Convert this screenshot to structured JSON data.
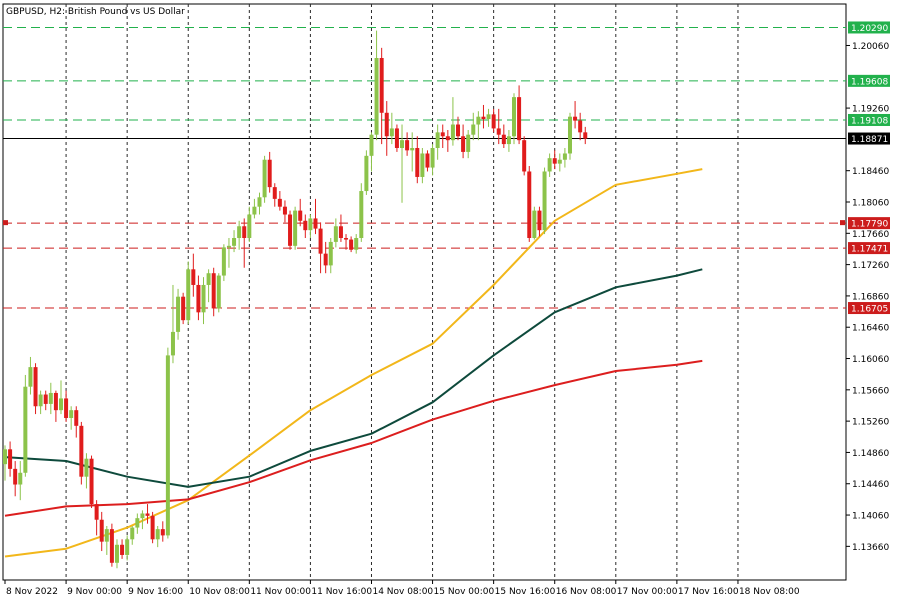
{
  "chart_data": {
    "type": "candlestick",
    "title": "GBPUSD, H2:  British Pound vs US Dollar",
    "ylim": [
      1.1323,
      1.2059
    ],
    "xlim": [
      0,
      142
    ],
    "grid": true,
    "y_ticks": [
      "1.20060",
      "1.19260",
      "1.18460",
      "1.18060",
      "1.17660",
      "1.17260",
      "1.16860",
      "1.16460",
      "1.16060",
      "1.15660",
      "1.15260",
      "1.14860",
      "1.14460",
      "1.14060",
      "1.13660"
    ],
    "x_ticks": [
      {
        "index": 0,
        "label": "8 Nov 2022"
      },
      {
        "index": 12,
        "label": "9 Nov 00:00"
      },
      {
        "index": 24,
        "label": "9 Nov 16:00"
      },
      {
        "index": 36,
        "label": "10 Nov 08:00"
      },
      {
        "index": 48,
        "label": "11 Nov 00:00"
      },
      {
        "index": 60,
        "label": "11 Nov 16:00"
      },
      {
        "index": 72,
        "label": "14 Nov 08:00"
      },
      {
        "index": 84,
        "label": "15 Nov 00:00"
      },
      {
        "index": 96,
        "label": "15 Nov 16:00"
      },
      {
        "index": 108,
        "label": "16 Nov 08:00"
      },
      {
        "index": 120,
        "label": "17 Nov 00:00"
      },
      {
        "index": 132,
        "label": "17 Nov 16:00"
      },
      {
        "index": 144,
        "label": "18 Nov 08:00"
      }
    ],
    "current_price": "1.18871",
    "levels": [
      {
        "value": 1.2029,
        "label": "1.20290",
        "kind": "resistance"
      },
      {
        "value": 1.19608,
        "label": "1.19608",
        "kind": "resistance"
      },
      {
        "value": 1.19108,
        "label": "1.19108",
        "kind": "resistance"
      },
      {
        "value": 1.1779,
        "label": "1.17790",
        "kind": "support"
      },
      {
        "value": 1.17471,
        "label": "1.17471",
        "kind": "support"
      },
      {
        "value": 1.16705,
        "label": "1.16705",
        "kind": "support"
      }
    ],
    "colors": {
      "bull": "#8cc34a",
      "bear": "#e01c1c",
      "resistance": "#22b14c",
      "support": "#cc1c1c",
      "grid": "#2a2a2a",
      "price_line": "#000000",
      "ma_fast": "#f2b71a",
      "ma_mid": "#0e4a3c",
      "ma_slow": "#dc1e1e"
    },
    "candles": [
      [
        1.1471,
        1.1495,
        1.145,
        1.149
      ],
      [
        1.149,
        1.15,
        1.1455,
        1.1465
      ],
      [
        1.1465,
        1.1475,
        1.143,
        1.1445
      ],
      [
        1.1445,
        1.1475,
        1.1425,
        1.146
      ],
      [
        1.146,
        1.1585,
        1.1455,
        1.157
      ],
      [
        1.157,
        1.1608,
        1.156,
        1.1595
      ],
      [
        1.1595,
        1.16,
        1.1535,
        1.1545
      ],
      [
        1.1545,
        1.1565,
        1.1535,
        1.156
      ],
      [
        1.156,
        1.1565,
        1.154,
        1.1548
      ],
      [
        1.1548,
        1.1575,
        1.1535,
        1.1562
      ],
      [
        1.1562,
        1.1565,
        1.1525,
        1.154
      ],
      [
        1.154,
        1.1578,
        1.1535,
        1.1555
      ],
      [
        1.1555,
        1.1565,
        1.1525,
        1.153
      ],
      [
        1.153,
        1.1545,
        1.1515,
        1.154
      ],
      [
        1.154,
        1.1545,
        1.1505,
        1.152
      ],
      [
        1.152,
        1.1525,
        1.1445,
        1.1455
      ],
      [
        1.1455,
        1.1485,
        1.144,
        1.1478
      ],
      [
        1.1478,
        1.1482,
        1.1415,
        1.142
      ],
      [
        1.142,
        1.1425,
        1.138,
        1.14
      ],
      [
        1.14,
        1.141,
        1.136,
        1.1372
      ],
      [
        1.1372,
        1.1392,
        1.1355,
        1.1388
      ],
      [
        1.1388,
        1.1395,
        1.134,
        1.1345
      ],
      [
        1.1345,
        1.1375,
        1.1338,
        1.1368
      ],
      [
        1.1368,
        1.1375,
        1.135,
        1.1355
      ],
      [
        1.1355,
        1.138,
        1.1348,
        1.1375
      ],
      [
        1.1375,
        1.1392,
        1.1368,
        1.139
      ],
      [
        1.139,
        1.1408,
        1.1382,
        1.1402
      ],
      [
        1.1402,
        1.1412,
        1.1388,
        1.1408
      ],
      [
        1.1408,
        1.142,
        1.1395,
        1.1405
      ],
      [
        1.1405,
        1.141,
        1.137,
        1.1375
      ],
      [
        1.1375,
        1.1392,
        1.1365,
        1.1388
      ],
      [
        1.1388,
        1.1398,
        1.1372,
        1.138
      ],
      [
        1.138,
        1.162,
        1.1376,
        1.161
      ],
      [
        1.161,
        1.17,
        1.16,
        1.164
      ],
      [
        1.164,
        1.1695,
        1.163,
        1.1685
      ],
      [
        1.1685,
        1.169,
        1.165,
        1.1655
      ],
      [
        1.1655,
        1.173,
        1.165,
        1.172
      ],
      [
        1.172,
        1.174,
        1.1685,
        1.17
      ],
      [
        1.17,
        1.1712,
        1.1655,
        1.1665
      ],
      [
        1.1665,
        1.171,
        1.165,
        1.17
      ],
      [
        1.17,
        1.172,
        1.1678,
        1.1715
      ],
      [
        1.1715,
        1.1722,
        1.166,
        1.167
      ],
      [
        1.167,
        1.1715,
        1.1665,
        1.1712
      ],
      [
        1.1712,
        1.1752,
        1.1705,
        1.1748
      ],
      [
        1.1748,
        1.176,
        1.1722,
        1.175
      ],
      [
        1.175,
        1.177,
        1.1742,
        1.176
      ],
      [
        1.176,
        1.1782,
        1.1745,
        1.1775
      ],
      [
        1.1775,
        1.1785,
        1.1722,
        1.176
      ],
      [
        1.176,
        1.18,
        1.1755,
        1.179
      ],
      [
        1.179,
        1.181,
        1.1785,
        1.18
      ],
      [
        1.18,
        1.1818,
        1.179,
        1.1812
      ],
      [
        1.1812,
        1.1865,
        1.1805,
        1.186
      ],
      [
        1.186,
        1.187,
        1.1818,
        1.1825
      ],
      [
        1.1825,
        1.183,
        1.18,
        1.181
      ],
      [
        1.181,
        1.182,
        1.1795,
        1.18
      ],
      [
        1.18,
        1.1808,
        1.178,
        1.179
      ],
      [
        1.179,
        1.1795,
        1.1745,
        1.175
      ],
      [
        1.175,
        1.18,
        1.1745,
        1.1795
      ],
      [
        1.1795,
        1.181,
        1.1775,
        1.1782
      ],
      [
        1.1782,
        1.179,
        1.176,
        1.177
      ],
      [
        1.177,
        1.179,
        1.176,
        1.1785
      ],
      [
        1.1785,
        1.181,
        1.1765,
        1.1772
      ],
      [
        1.1772,
        1.178,
        1.1715,
        1.174
      ],
      [
        1.174,
        1.1755,
        1.1715,
        1.1725
      ],
      [
        1.1725,
        1.176,
        1.1715,
        1.1755
      ],
      [
        1.1755,
        1.1785,
        1.1748,
        1.1775
      ],
      [
        1.1775,
        1.179,
        1.1755,
        1.176
      ],
      [
        1.176,
        1.1765,
        1.1745,
        1.1758
      ],
      [
        1.1758,
        1.1762,
        1.1742,
        1.1745
      ],
      [
        1.1745,
        1.1765,
        1.174,
        1.176
      ],
      [
        1.176,
        1.183,
        1.1755,
        1.182
      ],
      [
        1.182,
        1.1872,
        1.1815,
        1.1865
      ],
      [
        1.1865,
        1.1895,
        1.1845,
        1.1892
      ],
      [
        1.1892,
        1.2025,
        1.1885,
        1.199
      ],
      [
        1.199,
        1.2003,
        1.188,
        1.192
      ],
      [
        1.192,
        1.1935,
        1.1865,
        1.189
      ],
      [
        1.189,
        1.192,
        1.188,
        1.19
      ],
      [
        1.19,
        1.1905,
        1.187,
        1.1875
      ],
      [
        1.1875,
        1.1905,
        1.1805,
        1.1885
      ],
      [
        1.1885,
        1.1895,
        1.1865,
        1.1872
      ],
      [
        1.1872,
        1.1895,
        1.1845,
        1.1875
      ],
      [
        1.1875,
        1.189,
        1.183,
        1.1838
      ],
      [
        1.1838,
        1.1875,
        1.183,
        1.1868
      ],
      [
        1.1868,
        1.1872,
        1.1845,
        1.185
      ],
      [
        1.185,
        1.188,
        1.184,
        1.1875
      ],
      [
        1.1875,
        1.1905,
        1.186,
        1.1895
      ],
      [
        1.1895,
        1.1905,
        1.1875,
        1.189
      ],
      [
        1.189,
        1.1898,
        1.187,
        1.1885
      ],
      [
        1.1885,
        1.194,
        1.1878,
        1.1905
      ],
      [
        1.1905,
        1.1915,
        1.1885,
        1.189
      ],
      [
        1.189,
        1.1905,
        1.1862,
        1.187
      ],
      [
        1.187,
        1.1898,
        1.1862,
        1.1892
      ],
      [
        1.1892,
        1.192,
        1.1885,
        1.1905
      ],
      [
        1.1905,
        1.1922,
        1.1885,
        1.1915
      ],
      [
        1.1915,
        1.193,
        1.19,
        1.1912
      ],
      [
        1.1912,
        1.1925,
        1.1902,
        1.1918
      ],
      [
        1.1918,
        1.1925,
        1.1895,
        1.19
      ],
      [
        1.19,
        1.1925,
        1.188,
        1.1892
      ],
      [
        1.1892,
        1.1905,
        1.1875,
        1.188
      ],
      [
        1.188,
        1.1898,
        1.187,
        1.189
      ],
      [
        1.189,
        1.1945,
        1.188,
        1.194
      ],
      [
        1.194,
        1.1955,
        1.188,
        1.1885
      ],
      [
        1.1885,
        1.189,
        1.184,
        1.1845
      ],
      [
        1.1845,
        1.1852,
        1.1755,
        1.176
      ],
      [
        1.176,
        1.18,
        1.1758,
        1.1795
      ],
      [
        1.1795,
        1.18,
        1.1762,
        1.177
      ],
      [
        1.177,
        1.185,
        1.1765,
        1.1845
      ],
      [
        1.1845,
        1.1868,
        1.1838,
        1.1862
      ],
      [
        1.1862,
        1.1872,
        1.1848,
        1.1855
      ],
      [
        1.1855,
        1.1868,
        1.1845,
        1.186
      ],
      [
        1.186,
        1.1875,
        1.185,
        1.1868
      ],
      [
        1.1868,
        1.192,
        1.186,
        1.1915
      ],
      [
        1.1915,
        1.1935,
        1.19,
        1.191
      ],
      [
        1.191,
        1.192,
        1.1885,
        1.1895
      ],
      [
        1.1895,
        1.1902,
        1.188,
        1.1887
      ]
    ],
    "series": [
      {
        "kind": "moving-average",
        "color_key": "ma_fast",
        "x": [
          0,
          12,
          24,
          36,
          48,
          60,
          72,
          84,
          96,
          108,
          120,
          132,
          137
        ],
        "values": [
          1.1353,
          1.1363,
          1.139,
          1.1425,
          1.1482,
          1.154,
          1.1585,
          1.1625,
          1.17,
          1.1782,
          1.1828,
          1.1842,
          1.1848
        ]
      },
      {
        "kind": "moving-average",
        "color_key": "ma_mid",
        "x": [
          0,
          12,
          24,
          36,
          48,
          60,
          72,
          84,
          96,
          108,
          120,
          132,
          137
        ],
        "values": [
          1.148,
          1.1475,
          1.1455,
          1.1442,
          1.1455,
          1.1488,
          1.151,
          1.155,
          1.161,
          1.1665,
          1.1697,
          1.1712,
          1.172
        ]
      },
      {
        "kind": "moving-average",
        "color_key": "ma_slow",
        "x": [
          0,
          12,
          24,
          36,
          48,
          60,
          72,
          84,
          96,
          108,
          120,
          132,
          137
        ],
        "values": [
          1.1405,
          1.1417,
          1.142,
          1.1426,
          1.1448,
          1.1476,
          1.1498,
          1.1528,
          1.1552,
          1.1572,
          1.159,
          1.1598,
          1.1603
        ]
      }
    ]
  }
}
